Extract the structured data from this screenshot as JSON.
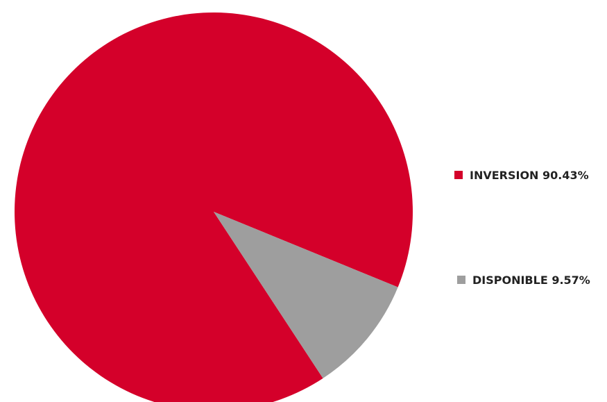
{
  "chart_data": {
    "type": "pie",
    "slices": [
      {
        "label": "INVERSION",
        "value": 90.43,
        "value_label": "90.43%",
        "color": "#d4002a"
      },
      {
        "label": "DISPONIBLE",
        "value": 9.57,
        "value_label": "9.57%",
        "color": "#9e9e9e"
      }
    ],
    "legend_position": "right"
  }
}
